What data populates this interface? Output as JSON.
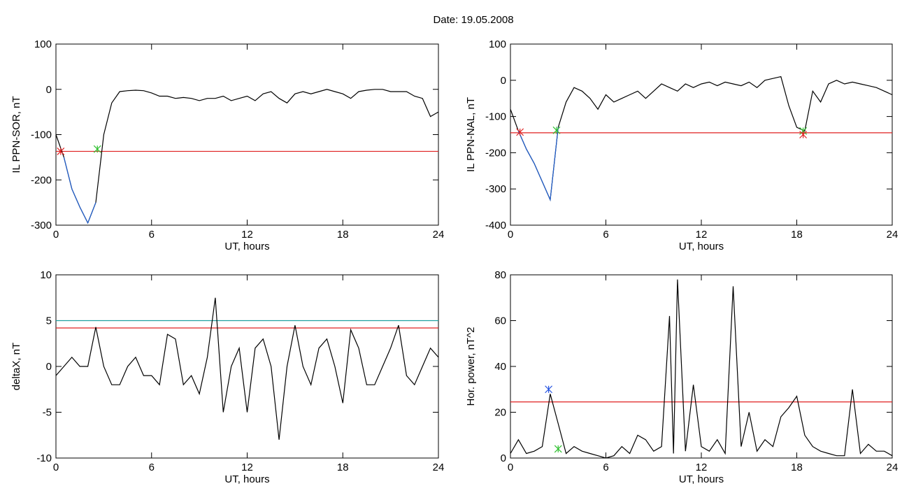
{
  "title": "Date:  19.05.2008",
  "chart_data": [
    {
      "type": "line",
      "ylabel": "IL PPN-SOR, nT",
      "xlabel": "UT, hours",
      "xlim": [
        0,
        24
      ],
      "xticks": [
        0,
        6,
        12,
        18,
        24
      ],
      "ylim": [
        -300,
        100
      ],
      "yticks": [
        -300,
        -200,
        -100,
        0,
        100
      ],
      "x": [
        0,
        0.5,
        1,
        1.5,
        2,
        2.5,
        3,
        3.5,
        4,
        4.5,
        5,
        5.5,
        6,
        6.5,
        7,
        7.5,
        8,
        8.5,
        9,
        9.5,
        10,
        10.5,
        11,
        11.5,
        12,
        12.5,
        13,
        13.5,
        14,
        14.5,
        15,
        15.5,
        16,
        16.5,
        17,
        17.5,
        18,
        18.5,
        19,
        19.5,
        20,
        20.5,
        21,
        21.5,
        22,
        22.5,
        23,
        23.5,
        24
      ],
      "series": [
        {
          "color": "#000000",
          "values": [
            -100,
            -150,
            -220,
            -260,
            -295,
            -250,
            -100,
            -30,
            -5,
            -3,
            -2,
            -3,
            -8,
            -15,
            -15,
            -20,
            -18,
            -20,
            -25,
            -20,
            -20,
            -15,
            -25,
            -20,
            -15,
            -25,
            -10,
            -5,
            -20,
            -30,
            -10,
            -5,
            -10,
            -5,
            0,
            -5,
            -10,
            -20,
            -5,
            -2,
            0,
            0,
            -5,
            -5,
            -5,
            -15,
            -20,
            -60,
            -50
          ]
        },
        {
          "color": "#1f5fd0",
          "values": [
            null,
            -150,
            -220,
            -260,
            -295,
            -250,
            null,
            null,
            null,
            null,
            null,
            null,
            null,
            null,
            null,
            null,
            null,
            null,
            null,
            null,
            null,
            null,
            null,
            null,
            null,
            null,
            null,
            null,
            null,
            null,
            null,
            null,
            null,
            null,
            null,
            null,
            null,
            null,
            null,
            null,
            null,
            null,
            null,
            null,
            null,
            null,
            null,
            null,
            null
          ]
        }
      ],
      "hlines": [
        {
          "value": -137,
          "color": "#e02020"
        }
      ],
      "markers": [
        {
          "x": 0.3,
          "y": -137,
          "color": "#e02020"
        },
        {
          "x": 2.6,
          "y": -132,
          "color": "#30c030"
        }
      ]
    },
    {
      "type": "line",
      "ylabel": "IL PPN-NAL, nT",
      "xlabel": "UT, hours",
      "xlim": [
        0,
        24
      ],
      "xticks": [
        0,
        6,
        12,
        18,
        24
      ],
      "ylim": [
        -400,
        100
      ],
      "yticks": [
        -400,
        -300,
        -200,
        -100,
        0,
        100
      ],
      "x": [
        0,
        0.5,
        1,
        1.5,
        2,
        2.5,
        3,
        3.5,
        4,
        4.5,
        5,
        5.5,
        6,
        6.5,
        7,
        7.5,
        8,
        8.5,
        9,
        9.5,
        10,
        10.5,
        11,
        11.5,
        12,
        12.5,
        13,
        13.5,
        14,
        14.5,
        15,
        15.5,
        16,
        16.5,
        17,
        17.5,
        18,
        18.5,
        19,
        19.5,
        20,
        20.5,
        21,
        21.5,
        22,
        22.5,
        23,
        23.5,
        24
      ],
      "series": [
        {
          "color": "#000000",
          "values": [
            -80,
            -140,
            -190,
            -230,
            -280,
            -330,
            -130,
            -60,
            -20,
            -30,
            -50,
            -80,
            -40,
            -60,
            -50,
            -40,
            -30,
            -50,
            -30,
            -10,
            -20,
            -30,
            -10,
            -20,
            -10,
            -5,
            -15,
            -5,
            -10,
            -15,
            -5,
            -20,
            0,
            5,
            10,
            -70,
            -130,
            -140,
            -30,
            -60,
            -10,
            0,
            -10,
            -5,
            -10,
            -15,
            -20,
            -30,
            -40
          ]
        },
        {
          "color": "#1f5fd0",
          "values": [
            null,
            -140,
            -190,
            -230,
            -280,
            -330,
            -130,
            null,
            null,
            null,
            null,
            null,
            null,
            null,
            null,
            null,
            null,
            null,
            null,
            null,
            null,
            null,
            null,
            null,
            null,
            null,
            null,
            null,
            null,
            null,
            null,
            null,
            null,
            null,
            null,
            null,
            null,
            null,
            null,
            null,
            null,
            null,
            null,
            null,
            null,
            null,
            null,
            null,
            null
          ]
        }
      ],
      "hlines": [
        {
          "value": -145,
          "color": "#e02020"
        }
      ],
      "markers": [
        {
          "x": 0.6,
          "y": -143,
          "color": "#e02020"
        },
        {
          "x": 2.9,
          "y": -138,
          "color": "#30c030"
        },
        {
          "x": 18.4,
          "y": -140,
          "color": "#30c030"
        },
        {
          "x": 18.4,
          "y": -150,
          "color": "#e02020"
        }
      ]
    },
    {
      "type": "line",
      "ylabel": "deltaX, nT",
      "xlabel": "UT, hours",
      "xlim": [
        0,
        24
      ],
      "xticks": [
        0,
        6,
        12,
        18,
        24
      ],
      "ylim": [
        -10,
        10
      ],
      "yticks": [
        -10,
        -5,
        0,
        5,
        10
      ],
      "x": [
        0,
        0.5,
        1,
        1.5,
        2,
        2.5,
        3,
        3.5,
        4,
        4.5,
        5,
        5.5,
        6,
        6.5,
        7,
        7.5,
        8,
        8.5,
        9,
        9.5,
        10,
        10.5,
        11,
        11.5,
        12,
        12.5,
        13,
        13.5,
        14,
        14.5,
        15,
        15.5,
        16,
        16.5,
        17,
        17.5,
        18,
        18.5,
        19,
        19.5,
        20,
        20.5,
        21,
        21.5,
        22,
        22.5,
        23,
        23.5,
        24
      ],
      "series": [
        {
          "color": "#000000",
          "values": [
            -1,
            0,
            1,
            0,
            0,
            4.3,
            0,
            -2,
            -2,
            0,
            1,
            -1,
            -1,
            -2,
            3.5,
            3,
            -2,
            -1,
            -3,
            1,
            7.5,
            -5,
            0,
            2,
            -5,
            2,
            3,
            0,
            -8,
            0,
            4.5,
            0,
            -2,
            2,
            3,
            0,
            -4,
            4,
            2,
            -2,
            -2,
            0,
            2,
            4.5,
            -1,
            -2,
            0,
            2,
            1
          ]
        }
      ],
      "hlines": [
        {
          "value": 5,
          "color": "#20a0a0"
        },
        {
          "value": 4.2,
          "color": "#e02020"
        }
      ],
      "markers": []
    },
    {
      "type": "line",
      "ylabel": "Hor. power, nT^2",
      "xlabel": "UT, hours",
      "xlim": [
        0,
        24
      ],
      "xticks": [
        0,
        6,
        12,
        18,
        24
      ],
      "ylim": [
        0,
        80
      ],
      "yticks": [
        0,
        20,
        40,
        60,
        80
      ],
      "x": [
        0,
        0.5,
        1,
        1.5,
        2,
        2.5,
        3,
        3.5,
        4,
        4.5,
        5,
        5.5,
        6,
        6.5,
        7,
        7.5,
        8,
        8.5,
        9,
        9.5,
        10,
        10.25,
        10.5,
        11,
        11.5,
        12,
        12.5,
        13,
        13.5,
        14,
        14.5,
        15,
        15.5,
        16,
        16.5,
        17,
        17.5,
        18,
        18.5,
        19,
        19.5,
        20,
        20.5,
        21,
        21.5,
        22,
        22.5,
        23,
        23.5,
        24
      ],
      "series": [
        {
          "color": "#000000",
          "values": [
            2,
            8,
            2,
            3,
            5,
            28,
            15,
            2,
            5,
            3,
            2,
            1,
            0,
            1,
            5,
            2,
            10,
            8,
            3,
            5,
            62,
            2,
            78,
            3,
            32,
            5,
            3,
            8,
            2,
            75,
            5,
            20,
            3,
            8,
            5,
            18,
            22,
            27,
            10,
            5,
            3,
            2,
            1,
            1,
            30,
            2,
            6,
            3,
            3,
            1
          ]
        }
      ],
      "hlines": [
        {
          "value": 24.5,
          "color": "#e02020"
        }
      ],
      "markers": [
        {
          "x": 2.4,
          "y": 30,
          "color": "#2050e0"
        },
        {
          "x": 3,
          "y": 4,
          "color": "#30c030"
        }
      ]
    }
  ]
}
